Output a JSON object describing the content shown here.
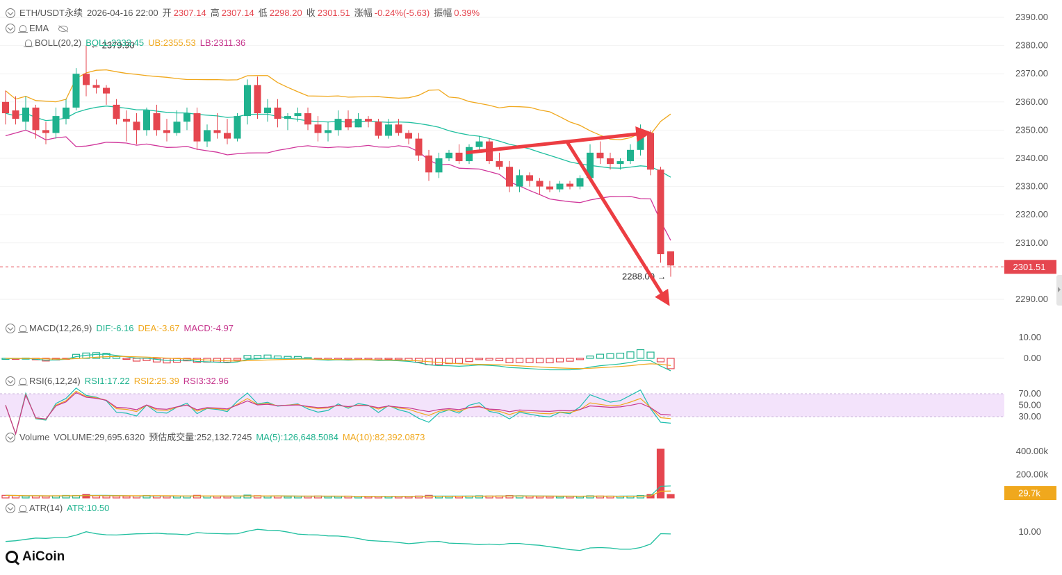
{
  "header": {
    "symbol": "ETH/USDT永续",
    "datetime": "2026-04-16 22:00",
    "open_label": "开",
    "open": "2307.14",
    "high_label": "高",
    "high": "2307.14",
    "low_label": "低",
    "low": "2298.20",
    "close_label": "收",
    "close": "2301.51",
    "change_label": "涨幅",
    "change": "-0.24%(-5.63)",
    "amp_label": "振幅",
    "amp": "0.39%"
  },
  "ema": {
    "label": "EMA"
  },
  "boll": {
    "label": "BOLL(20,2)",
    "mid": "BOLL:2333.45",
    "ub": "UB:2355.53",
    "lb": "LB:2311.36"
  },
  "macd": {
    "label": "MACD(12,26,9)",
    "dif": "DIF:-6.16",
    "dea": "DEA:-3.67",
    "macd": "MACD:-4.97"
  },
  "rsi": {
    "label": "RSI(6,12,24)",
    "rsi1": "RSI1:17.22",
    "rsi2": "RSI2:25.39",
    "rsi3": "RSI3:32.96"
  },
  "volume": {
    "label": "Volume",
    "vol": "VOLUME:29,695.6320",
    "est": "预估成交量:252,132.7245",
    "ma5": "MA(5):126,648.5084",
    "ma10": "MA(10):82,392.0873"
  },
  "atr": {
    "label": "ATR(14)",
    "value": "ATR:10.50"
  },
  "logo": {
    "text": "AiCoin"
  },
  "colors": {
    "up": "#1fb28e",
    "down": "#e5464f",
    "ub": "#f0a81d",
    "mid": "#1fbf9f",
    "lb": "#d0359a",
    "rsi1": "#1fbfb0",
    "rsi2": "#f0a81d",
    "rsi3": "#c6368d",
    "arrow": "#ec3d42",
    "rsi_band": "#f3e3fb"
  },
  "chart_data": [
    {
      "type": "candlestick",
      "name": "price",
      "ylim": [
        2285,
        2393
      ],
      "yticks": [
        "2390.00",
        "2380.00",
        "2370.00",
        "2360.00",
        "2350.00",
        "2340.00",
        "2330.00",
        "2320.00",
        "2310.00",
        "2290.00"
      ],
      "last_price": 2301.51,
      "last_price_label": "2301.51",
      "max_label": "2379.90",
      "min_label": "2288.00",
      "annotations": [
        {
          "type": "arrow",
          "from": [
            25,
            2342
          ],
          "to": [
            34,
            2349
          ]
        },
        {
          "type": "arrow",
          "from": [
            35,
            2346
          ],
          "to": [
            36,
            2289
          ]
        }
      ],
      "ohlc": [
        [
          2360,
          2364,
          2352,
          2356
        ],
        [
          2357,
          2362,
          2352,
          2354
        ],
        [
          2353,
          2362,
          2350,
          2358
        ],
        [
          2358,
          2359,
          2347,
          2350
        ],
        [
          2350,
          2353,
          2345,
          2349
        ],
        [
          2349,
          2358,
          2347,
          2355
        ],
        [
          2354,
          2361,
          2352,
          2358
        ],
        [
          2358,
          2372,
          2357,
          2370
        ],
        [
          2370,
          2380,
          2362,
          2366
        ],
        [
          2366,
          2368,
          2363,
          2365
        ],
        [
          2365,
          2366,
          2359,
          2363
        ],
        [
          2359,
          2361,
          2352,
          2354
        ],
        [
          2354,
          2357,
          2346,
          2353
        ],
        [
          2353,
          2356,
          2345,
          2350
        ],
        [
          2350,
          2358,
          2348,
          2357
        ],
        [
          2356,
          2359,
          2348,
          2350
        ],
        [
          2350,
          2354,
          2346,
          2349
        ],
        [
          2349,
          2357,
          2348,
          2353
        ],
        [
          2353,
          2358,
          2350,
          2356
        ],
        [
          2356,
          2358,
          2343,
          2346
        ],
        [
          2346,
          2352,
          2344,
          2350
        ],
        [
          2350,
          2356,
          2347,
          2349
        ],
        [
          2349,
          2354,
          2345,
          2347
        ],
        [
          2347,
          2356,
          2346,
          2355
        ],
        [
          2355,
          2368,
          2352,
          2366
        ],
        [
          2366,
          2369,
          2354,
          2356
        ],
        [
          2356,
          2361,
          2353,
          2358
        ],
        [
          2358,
          2361,
          2351,
          2354
        ],
        [
          2354,
          2356,
          2350,
          2355
        ],
        [
          2355,
          2358,
          2353,
          2356
        ],
        [
          2356,
          2358,
          2350,
          2352
        ],
        [
          2352,
          2355,
          2346,
          2349
        ],
        [
          2349,
          2353,
          2346,
          2350
        ],
        [
          2350,
          2357,
          2348,
          2354
        ],
        [
          2354,
          2357,
          2350,
          2351
        ],
        [
          2351,
          2356,
          2351,
          2354
        ],
        [
          2354,
          2355,
          2351,
          2353
        ],
        [
          2353,
          2354,
          2347,
          2348
        ],
        [
          2348,
          2354,
          2347,
          2352
        ],
        [
          2352,
          2354,
          2348,
          2349
        ],
        [
          2349,
          2350,
          2345,
          2347
        ],
        [
          2347,
          2349,
          2339,
          2341
        ],
        [
          2341,
          2343,
          2332,
          2335
        ],
        [
          2335,
          2342,
          2333,
          2340
        ],
        [
          2340,
          2343,
          2339,
          2342
        ],
        [
          2342,
          2345,
          2338,
          2339
        ],
        [
          2339,
          2345,
          2338,
          2344
        ],
        [
          2344,
          2348,
          2342,
          2346
        ],
        [
          2346,
          2347,
          2338,
          2339
        ],
        [
          2339,
          2342,
          2336,
          2337
        ],
        [
          2337,
          2339,
          2328,
          2330
        ],
        [
          2330,
          2336,
          2328,
          2334
        ],
        [
          2334,
          2335,
          2330,
          2332
        ],
        [
          2332,
          2333,
          2327,
          2330
        ],
        [
          2330,
          2332,
          2328,
          2329
        ],
        [
          2329,
          2332,
          2328,
          2331
        ],
        [
          2331,
          2332,
          2329,
          2330
        ],
        [
          2330,
          2334,
          2329,
          2333
        ],
        [
          2333,
          2345,
          2332,
          2342
        ],
        [
          2342,
          2346,
          2338,
          2340
        ],
        [
          2340,
          2342,
          2336,
          2338
        ],
        [
          2338,
          2340,
          2336,
          2339
        ],
        [
          2339,
          2345,
          2338,
          2343
        ],
        [
          2343,
          2352,
          2341,
          2349
        ],
        [
          2349,
          2350,
          2334,
          2336
        ],
        [
          2336,
          2337,
          2303,
          2306
        ],
        [
          2307,
          2307,
          2298,
          2302
        ]
      ]
    },
    {
      "type": "line",
      "name": "MACD(12,26,9)",
      "yticks": [
        "10.00",
        "0.00"
      ]
    },
    {
      "type": "line",
      "name": "RSI(6,12,24)",
      "yticks": [
        "70.00",
        "50.00",
        "30.00"
      ]
    },
    {
      "type": "bar",
      "name": "Volume",
      "yticks": [
        "400.00k",
        "200.00k"
      ],
      "last_label": "29.7k",
      "last_value": 29695.632,
      "values": [
        22000,
        20000,
        16000,
        17000,
        15000,
        18000,
        21000,
        20000,
        30000,
        18000,
        17000,
        16000,
        15000,
        17000,
        20000,
        18000,
        15000,
        16000,
        17000,
        22000,
        16000,
        15000,
        14000,
        16000,
        24000,
        19000,
        15000,
        16000,
        13000,
        14000,
        15000,
        16000,
        13000,
        14000,
        15000,
        13000,
        12000,
        14000,
        13000,
        14000,
        12000,
        16000,
        22000,
        14000,
        13000,
        14000,
        15000,
        18000,
        16000,
        17000,
        20000,
        18000,
        15000,
        14000,
        13000,
        12000,
        13000,
        14000,
        18000,
        16000,
        15000,
        14000,
        15000,
        20000,
        30000,
        420000,
        29695
      ]
    },
    {
      "type": "line",
      "name": "ATR(14)",
      "yticks": [
        "10.00"
      ]
    }
  ]
}
